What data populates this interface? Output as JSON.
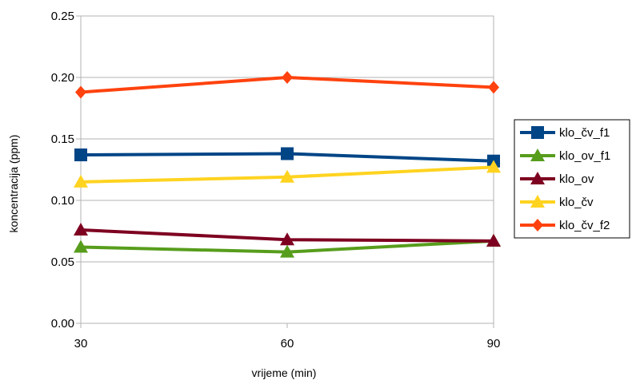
{
  "chart_data": {
    "type": "line",
    "title": "",
    "xlabel": "vrijeme (min)",
    "ylabel": "koncentracija (ppm)",
    "x": [
      30,
      60,
      90
    ],
    "x_tick_labels": [
      "30",
      "60",
      "90"
    ],
    "ylim": [
      0,
      0.25
    ],
    "y_ticks": [
      0,
      0.05,
      0.1,
      0.15,
      0.2,
      0.25
    ],
    "y_tick_labels": [
      "0.00",
      "0.05",
      "0.10",
      "0.15",
      "0.20",
      "0.25"
    ],
    "grid": "horizontal",
    "legend_position": "right",
    "series": [
      {
        "name": "klo_čv_f1",
        "values": [
          0.137,
          0.138,
          0.132
        ],
        "color": "#004586",
        "marker": "square"
      },
      {
        "name": "klo_ov_f1",
        "values": [
          0.062,
          0.058,
          0.067
        ],
        "color": "#579d1c",
        "marker": "triangle"
      },
      {
        "name": "klo_ov",
        "values": [
          0.076,
          0.068,
          0.067
        ],
        "color": "#7e0021",
        "marker": "triangle"
      },
      {
        "name": "klo_čv",
        "values": [
          0.115,
          0.119,
          0.127
        ],
        "color": "#ffd320",
        "marker": "triangle"
      },
      {
        "name": "klo_čv_f2",
        "values": [
          0.188,
          0.2,
          0.192
        ],
        "color": "#ff420e",
        "marker": "diamond"
      }
    ]
  }
}
